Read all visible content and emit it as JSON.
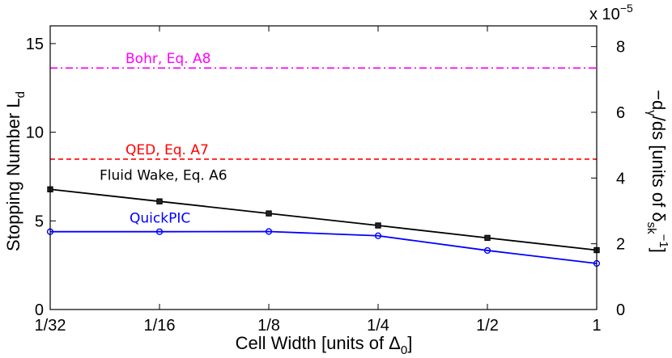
{
  "chart_data": {
    "type": "line",
    "categories": [
      "1/32",
      "1/16",
      "1/8",
      "1/4",
      "1/2",
      "1"
    ],
    "xlabel": "Cell Width [units of Δ",
    "xlabel_sub": "0",
    "xlabel_tail": "]",
    "ylabel": "Stopping Number L",
    "ylabel_sub": "d",
    "ylim": [
      0,
      16
    ],
    "yticks": [
      0,
      5,
      10,
      15
    ],
    "y2label_head": "−d",
    "y2label_sub1": "γ",
    "y2label_mid": "/ds [units of δ",
    "y2label_sub2": "sk",
    "y2label_sup": "−1",
    "y2label_tail": "]",
    "y2lim": [
      0,
      8.63
    ],
    "y2ticks": [
      0,
      2,
      4,
      6,
      8
    ],
    "y2_multiplier_base": "x 10",
    "y2_multiplier_exp": "−5",
    "grid": false,
    "series": [
      {
        "name": "Fluid Wake, Eq. A6",
        "color": "#000000",
        "marker": "square",
        "values": [
          6.78,
          6.1,
          5.42,
          4.74,
          4.04,
          3.35
        ]
      },
      {
        "name": "QuickPIC",
        "color": "#0000ff",
        "marker": "circle",
        "values": [
          4.39,
          4.39,
          4.4,
          4.16,
          3.33,
          2.6
        ]
      }
    ],
    "reference_lines": [
      {
        "name": "Bohr, Eq. A8",
        "color": "#ff00ff",
        "style": "dashdot",
        "value": 13.62
      },
      {
        "name": "QED, Eq. A7",
        "color": "#ff0000",
        "style": "dashed",
        "value": 8.48
      }
    ]
  }
}
